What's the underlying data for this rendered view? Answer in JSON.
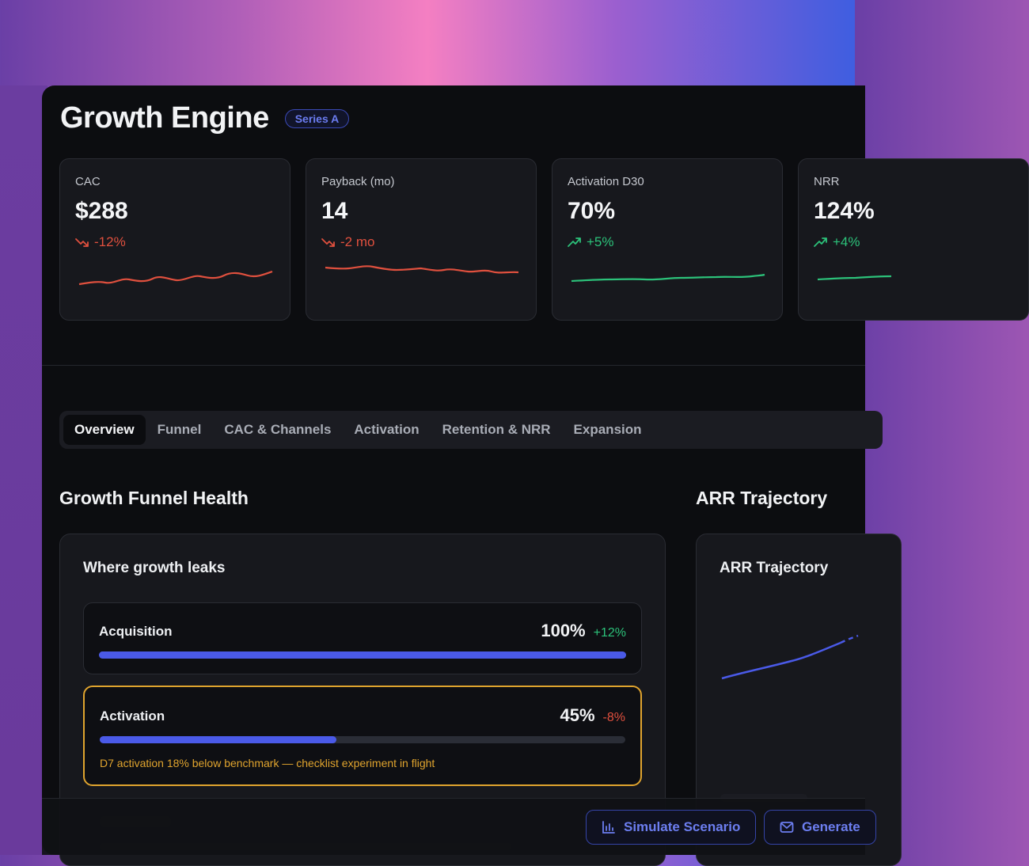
{
  "header": {
    "title": "Growth Engine",
    "badge": "Series A"
  },
  "kpis": [
    {
      "label": "CAC",
      "value": "$288",
      "delta": "-12%",
      "trend": "down",
      "color": "#e0503e"
    },
    {
      "label": "Payback (mo)",
      "value": "14",
      "delta": "-2 mo",
      "trend": "down",
      "color": "#e0503e"
    },
    {
      "label": "Activation D30",
      "value": "70%",
      "delta": "+5%",
      "trend": "up",
      "color": "#2cc27a"
    },
    {
      "label": "NRR",
      "value": "124%",
      "delta": "+4%",
      "trend": "up",
      "color": "#2cc27a"
    }
  ],
  "tabs": [
    "Overview",
    "Funnel",
    "CAC & Channels",
    "Activation",
    "Retention & NRR",
    "Expansion"
  ],
  "active_tab": "Overview",
  "funnel": {
    "section_title": "Growth Funnel Health",
    "panel_title": "Where growth leaks",
    "rows": [
      {
        "label": "Acquisition",
        "pct": "100%",
        "delta": "+12%",
        "fill": 1.0
      },
      {
        "label": "Activation",
        "pct": "45%",
        "delta": "-8%",
        "fill": 0.45,
        "note": "D7 activation 18% below benchmark — checklist experiment in flight"
      }
    ]
  },
  "arr": {
    "section_title": "ARR Trajectory",
    "panel_title": "ARR Trajectory"
  },
  "footer": {
    "simulate_label": "Simulate Scenario",
    "generate_label": "Generate"
  },
  "colors": {
    "accent": "#4a5ae8",
    "warning": "#e0a42e",
    "negative": "#e0503e",
    "positive": "#2cc27a"
  }
}
